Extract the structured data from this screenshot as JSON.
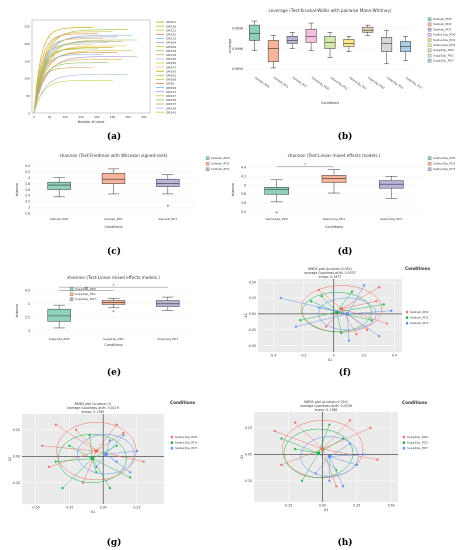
{
  "captions": [
    "(a)",
    "(b)",
    "(c)",
    "(d)",
    "(e)",
    "(f)",
    "(g)",
    "(h)"
  ],
  "colors": {
    "pd0": "#ef6b5e",
    "pd1": "#19b34a",
    "pd7": "#5b8ff0",
    "box_a": "#8fd1b8",
    "box_b": "#f7b49b",
    "box_c": "#b9b4d8"
  },
  "chart_data": [
    {
      "panel": "a",
      "type": "line",
      "xlabel": "Number of reads",
      "ylabel": "",
      "xticks": [
        "0",
        "5k",
        "10k",
        "15k",
        "20k",
        "25k",
        "30k",
        "35k"
      ],
      "yticks": [
        "0",
        "50",
        "100",
        "150",
        "200",
        "250"
      ],
      "legend_labels": [
        "OR501",
        "OR516",
        "OR521",
        "OR532",
        "OR513",
        "OR504",
        "OR506",
        "OR518",
        "OR519",
        "OR530",
        "OR545",
        "OR547",
        "OR505",
        "OR502",
        "OR506",
        "OR50",
        "OR509",
        "OR531",
        "OR527",
        "OR536",
        "OR537",
        "OR529",
        "OR541"
      ],
      "series_plateaus": [
        248,
        242,
        236,
        230,
        226,
        221,
        216,
        212,
        208,
        204,
        199,
        195,
        190,
        186,
        181,
        176,
        170,
        164,
        156,
        146,
        132,
        112,
        95
      ]
    },
    {
      "panel": "b",
      "type": "box",
      "title": "coverage (Test:Kruskal-Wallis with pairwise Mann-Whitney)",
      "xlabel": "Conditions",
      "ylabel": "coverage",
      "yticks": [
        "0.9998",
        "0.9996",
        "0.9994"
      ],
      "ylim": [
        0.99935,
        0.9999
      ],
      "categories": [
        "Salineb_PD0",
        "Salineb_PD1",
        "Salineb_PD7",
        "Saline10µ_PD0",
        "Saline10µ_PD1",
        "Saline10µ_PD7",
        "Supp10µ_PD0",
        "Supp10µ_PD1",
        "Supp10µ_PD7"
      ],
      "legend_labels": [
        "Salineb_PD0",
        "Salineb_PD1",
        "Salineb_PD7",
        "Saline10µ_PD0",
        "Saline10µ_PD1",
        "Saline10µ_PD7",
        "Supp10µ_PD0",
        "Supp10µ_PD1",
        "Supp10µ_PD7"
      ],
      "box_colors": [
        "#8fd1b8",
        "#f7b49b",
        "#b9b4d8",
        "#f5c0de",
        "#d4e9a9",
        "#fbe88e",
        "#e6d4b4",
        "#d7d7d7",
        "#a9cfe4"
      ],
      "boxes": [
        [
          0.99958,
          0.99968,
          0.99975,
          0.99983,
          0.99987
        ],
        [
          0.99941,
          0.99947,
          0.9996,
          0.99968,
          0.99973
        ],
        [
          0.9996,
          0.99965,
          0.99968,
          0.99972,
          0.99976
        ],
        [
          0.99958,
          0.99966,
          0.99972,
          0.99979,
          0.99985
        ],
        [
          0.99951,
          0.9996,
          0.99966,
          0.99972,
          0.99976
        ],
        [
          0.99957,
          0.99962,
          0.99965,
          0.99969,
          0.99972
        ],
        [
          0.99973,
          0.99976,
          0.99978,
          0.99981,
          0.99983
        ],
        [
          0.99945,
          0.99957,
          0.99965,
          0.99971,
          0.99978
        ],
        [
          0.99948,
          0.99957,
          0.99962,
          0.99967,
          0.99972
        ]
      ]
    },
    {
      "panel": "c",
      "type": "box",
      "title": "shannon (Test:Friedman with Wilcoxon signed-rank)",
      "xlabel": "Conditions",
      "ylabel": "shannon",
      "yticks": [
        "4.4",
        "4.2",
        "4",
        "3.8",
        "3.6",
        "3.4",
        "3.2",
        "3",
        "2.8"
      ],
      "ylim": [
        2.7,
        4.5
      ],
      "categories": [
        "Salineb_PD0",
        "Salineb_PD1",
        "Salineb_PD7"
      ],
      "legend_labels": [
        "Salineb_PD0",
        "Salineb_PD1",
        "Salineb_PD7"
      ],
      "boxes": [
        [
          3.35,
          3.6,
          3.75,
          3.85,
          4.0
        ],
        [
          3.45,
          3.8,
          3.95,
          4.15,
          4.3
        ],
        [
          3.45,
          3.7,
          3.8,
          3.95,
          4.1
        ]
      ],
      "outliers": [
        [],
        [],
        [
          3.05
        ]
      ]
    },
    {
      "panel": "d",
      "type": "box",
      "title": "shannon (Test:Linear mixed effects models.)",
      "xlabel": "Conditions",
      "ylabel": "shannon",
      "yticks": [
        "4.4",
        "4.2",
        "4",
        "3.8",
        "3.6",
        "3.4"
      ],
      "ylim": [
        3.3,
        4.5
      ],
      "categories": [
        "Saline10µ_PD0",
        "Saline10µ_PD1",
        "Saline10µ_PD7"
      ],
      "legend_labels": [
        "Saline10µ_PD0",
        "Saline10µ_PD1",
        "Saline10µ_PD7"
      ],
      "boxes": [
        [
          3.62,
          3.79,
          3.9,
          3.95,
          4.12
        ],
        [
          3.82,
          4.06,
          4.15,
          4.22,
          4.35
        ],
        [
          3.7,
          3.93,
          4.02,
          4.1,
          4.2
        ]
      ],
      "outliers": [
        [
          3.38
        ],
        [],
        []
      ],
      "significance": "*"
    },
    {
      "panel": "e",
      "type": "box",
      "title": "shannon (Test:Linear mixed effects models.)",
      "xlabel": "Conditions",
      "ylabel": "shannon",
      "yticks": [
        "4.5",
        "4",
        "3.5",
        "3"
      ],
      "ylim": [
        2.8,
        4.7
      ],
      "categories": [
        "Supp10µ_PD0",
        "Supp10µ_PD1",
        "Supp10µ_PD7"
      ],
      "legend_labels": [
        "Supp10µ_PD0",
        "Supp10µ_PD1",
        "Supp10µ_PD7"
      ],
      "boxes": [
        [
          3.1,
          3.35,
          3.55,
          3.8,
          3.95
        ],
        [
          3.85,
          3.98,
          4.05,
          4.12,
          4.2
        ],
        [
          3.75,
          3.9,
          4.0,
          4.12,
          4.25
        ]
      ],
      "outliers": [
        [],
        [
          3.72
        ],
        []
      ],
      "significance": [
        "**",
        "*"
      ]
    },
    {
      "panel": "f",
      "type": "scatter",
      "title": "NMDS plot (p-value=0.052)",
      "subtitle": "average Goodness-of-fit: 0.0337",
      "subtitle2": "stress: 0.1977",
      "xlabel": "X1",
      "ylabel": "X2",
      "xticks": [
        "-0.4",
        "-0.2",
        "0",
        "0.2",
        "0.4"
      ],
      "yticks": [
        "0.50",
        "0.25",
        "0.00",
        "-0.25",
        "-0.50"
      ],
      "xlim": [
        -0.5,
        0.45
      ],
      "ylim": [
        -0.6,
        0.55
      ],
      "legend_title": "Conditions",
      "legend_labels": [
        "Salineb_PD0",
        "Salineb_PD1",
        "Salineb_PD7"
      ],
      "centroids": [
        [
          0.05,
          0.08
        ],
        [
          0.02,
          0.03
        ],
        [
          0.09,
          0.0
        ]
      ],
      "points": [
        [
          [
            0.3,
            0.42
          ],
          [
            0.22,
            -0.25
          ],
          [
            0.35,
            -0.15
          ],
          [
            -0.1,
            0.38
          ],
          [
            0.28,
            0.2
          ],
          [
            0.15,
            -0.32
          ],
          [
            -0.05,
            -0.2
          ]
        ],
        [
          [
            -0.15,
            0.2
          ],
          [
            0.12,
            0.35
          ],
          [
            0.25,
            -0.1
          ],
          [
            -0.22,
            -0.1
          ],
          [
            0.05,
            -0.3
          ],
          [
            0.33,
            0.15
          ],
          [
            -0.08,
            0.28
          ]
        ],
        [
          [
            -0.35,
            0.25
          ],
          [
            0.38,
            0.05
          ],
          [
            0.2,
            0.45
          ],
          [
            0.1,
            -0.42
          ],
          [
            -0.25,
            -0.2
          ],
          [
            0.3,
            -0.35
          ],
          [
            -0.1,
            0.1
          ]
        ]
      ]
    },
    {
      "panel": "g",
      "type": "scatter",
      "title": "NMDS plot (p-value=1)",
      "subtitle": "average Goodness-of-fit: 0.0119",
      "subtitle2": "stress: 0.1765",
      "xlabel": "X1",
      "ylabel": "X2",
      "xticks": [
        "-0.50",
        "-0.25",
        "0.00",
        "0.25"
      ],
      "yticks": [
        "0.25",
        "0.00",
        "-0.25"
      ],
      "xlim": [
        -0.6,
        0.45
      ],
      "ylim": [
        -0.45,
        0.4
      ],
      "legend_title": "Conditions",
      "legend_labels": [
        "Saline10µ_PD0",
        "Saline10µ_PD1",
        "Saline10µ_PD7"
      ],
      "centroids": [
        [
          -0.05,
          0.05
        ],
        [
          -0.08,
          -0.02
        ],
        [
          0.02,
          0.02
        ]
      ],
      "points": [
        [
          [
            -0.35,
            0.3
          ],
          [
            -0.2,
            0.25
          ],
          [
            0.15,
            0.22
          ],
          [
            -0.4,
            -0.1
          ],
          [
            0.3,
            -0.05
          ],
          [
            -0.15,
            -0.25
          ],
          [
            0.1,
            0.3
          ],
          [
            -0.45,
            0.1
          ]
        ],
        [
          [
            -0.3,
            -0.3
          ],
          [
            0.05,
            -0.3
          ],
          [
            -0.25,
            0.1
          ],
          [
            0.1,
            0.1
          ],
          [
            -0.1,
            0.2
          ],
          [
            -0.35,
            -0.05
          ],
          [
            0.2,
            -0.2
          ],
          [
            -0.05,
            -0.15
          ]
        ],
        [
          [
            0.1,
            -0.05
          ],
          [
            0.25,
            0.05
          ],
          [
            0.05,
            0.15
          ],
          [
            -0.05,
            -0.1
          ],
          [
            0.2,
            -0.15
          ],
          [
            0.15,
            0.2
          ]
        ]
      ]
    },
    {
      "panel": "h",
      "type": "scatter",
      "title": "NMDS plot (p-value=0.324)",
      "subtitle": "average Goodness-of-fit: 0.0338",
      "subtitle2": "stress: 0.1786",
      "xlabel": "X1",
      "ylabel": "X2",
      "xticks": [
        "-0.25",
        "0.00",
        "0.25",
        "0.50"
      ],
      "yticks": [
        "0.25",
        "0.00",
        "-0.25"
      ],
      "xlim": [
        -0.5,
        0.55
      ],
      "ylim": [
        -0.45,
        0.4
      ],
      "legend_title": "Conditions",
      "legend_labels": [
        "Supp10µ_PD0",
        "Supp10µ_PD1",
        "Supp10µ_PD7"
      ],
      "centroids": [
        [
          0.0,
          0.05
        ],
        [
          -0.03,
          0.01
        ],
        [
          0.05,
          -0.02
        ]
      ],
      "points": [
        [
          [
            -0.35,
            0.22
          ],
          [
            0.35,
            0.25
          ],
          [
            -0.3,
            -0.1
          ],
          [
            0.2,
            0.32
          ],
          [
            0.1,
            -0.3
          ],
          [
            -0.2,
            0.3
          ],
          [
            0.4,
            -0.05
          ]
        ],
        [
          [
            -0.2,
            0.05
          ],
          [
            0.15,
            0.15
          ],
          [
            -0.15,
            -0.25
          ],
          [
            0.05,
            0.28
          ],
          [
            -0.3,
            0.15
          ],
          [
            0.1,
            -0.15
          ]
        ],
        [
          [
            0.25,
            -0.1
          ],
          [
            0.2,
            0.1
          ],
          [
            0.05,
            -0.25
          ],
          [
            0.3,
            0.0
          ],
          [
            -0.05,
            -0.18
          ],
          [
            0.15,
            -0.3
          ]
        ]
      ]
    }
  ]
}
